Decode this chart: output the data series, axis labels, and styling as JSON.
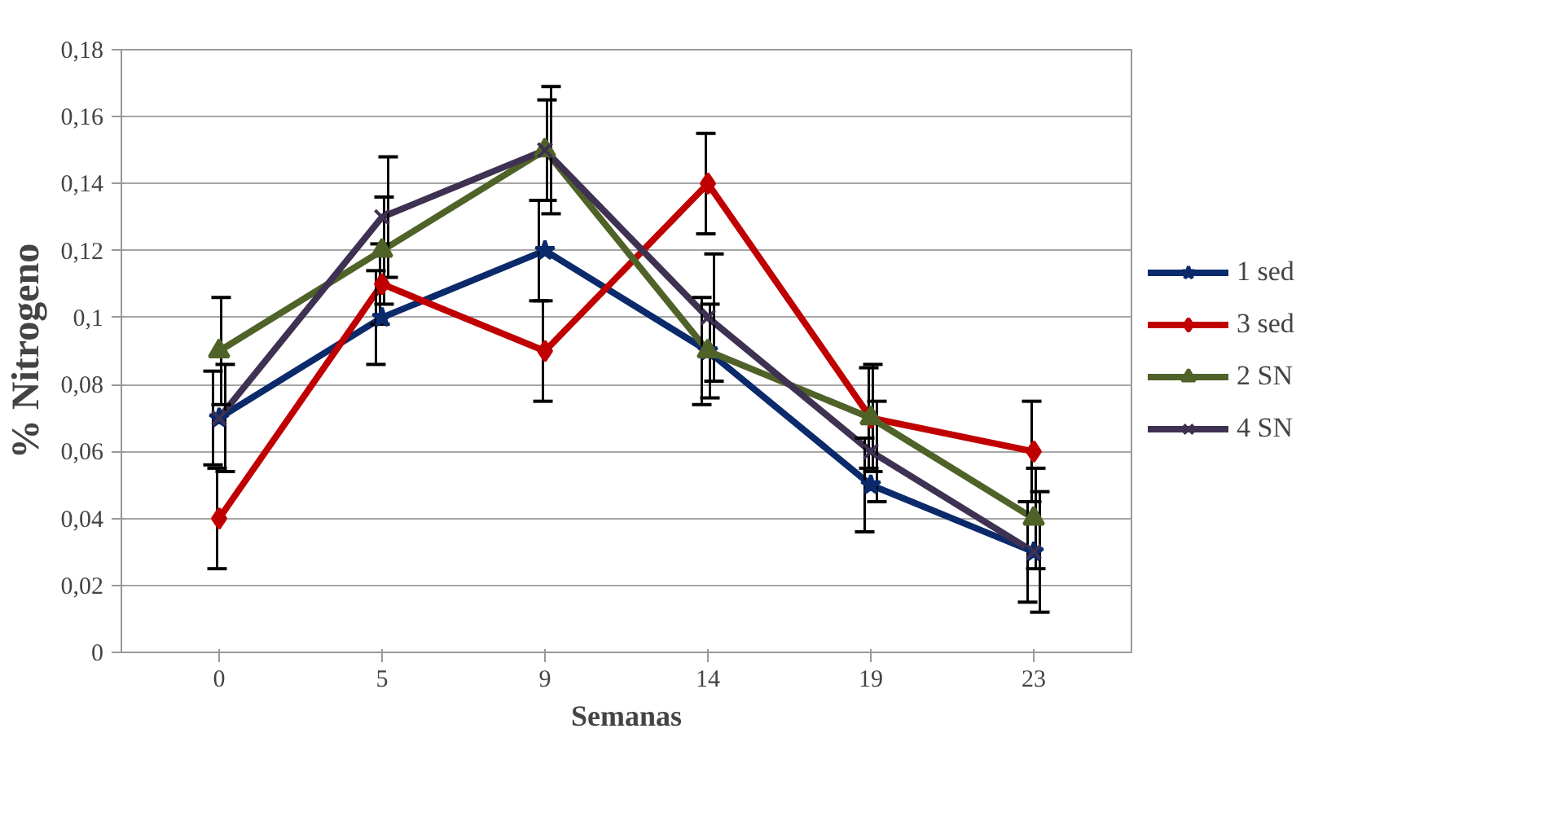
{
  "chart_data": {
    "type": "line",
    "xlabel": "Semanas",
    "ylabel": "% Nitrogeno",
    "categories": [
      "0",
      "5",
      "9",
      "14",
      "19",
      "23"
    ],
    "ylim": [
      0,
      0.18
    ],
    "yticks": [
      0,
      {
        "value": 0.02,
        "label": "0,02"
      },
      {
        "value": 0.04,
        "label": "0,04"
      },
      {
        "value": 0.06,
        "label": "0,06"
      },
      {
        "value": 0.08,
        "label": "0,08"
      },
      {
        "value": 0.1,
        "label": "0,1"
      },
      {
        "value": 0.12,
        "label": "0,12"
      },
      {
        "value": 0.14,
        "label": "0,14"
      },
      {
        "value": 0.16,
        "label": "0,16"
      },
      {
        "value": 0.18,
        "label": "0,18"
      }
    ],
    "grid": "y",
    "legend": "right",
    "line_style": "solid",
    "series": [
      {
        "name": "1 sed",
        "color": "#0b2a6b",
        "marker": "star",
        "values": [
          0.07,
          0.1,
          0.12,
          0.09,
          0.05,
          0.03
        ],
        "errors": [
          0.014,
          0.014,
          0.015,
          0.016,
          0.014,
          0.015
        ]
      },
      {
        "name": "3 sed",
        "color": "#c00000",
        "marker": "diamond",
        "values": [
          0.04,
          0.11,
          0.09,
          0.14,
          0.07,
          0.06
        ],
        "errors": [
          0.015,
          0.012,
          0.015,
          0.015,
          0.015,
          0.015
        ]
      },
      {
        "name": "2 SN",
        "color": "#4f6228",
        "marker": "triangle",
        "values": [
          0.09,
          0.12,
          0.15,
          0.09,
          0.07,
          0.04
        ],
        "errors": [
          0.016,
          0.016,
          0.015,
          0.014,
          0.016,
          0.015
        ]
      },
      {
        "name": "4 SN",
        "color": "#3f3151",
        "marker": "cross",
        "values": [
          0.07,
          0.13,
          0.15,
          0.1,
          0.06,
          0.03
        ],
        "errors": [
          0.016,
          0.018,
          0.019,
          0.019,
          0.015,
          0.018
        ]
      }
    ]
  }
}
